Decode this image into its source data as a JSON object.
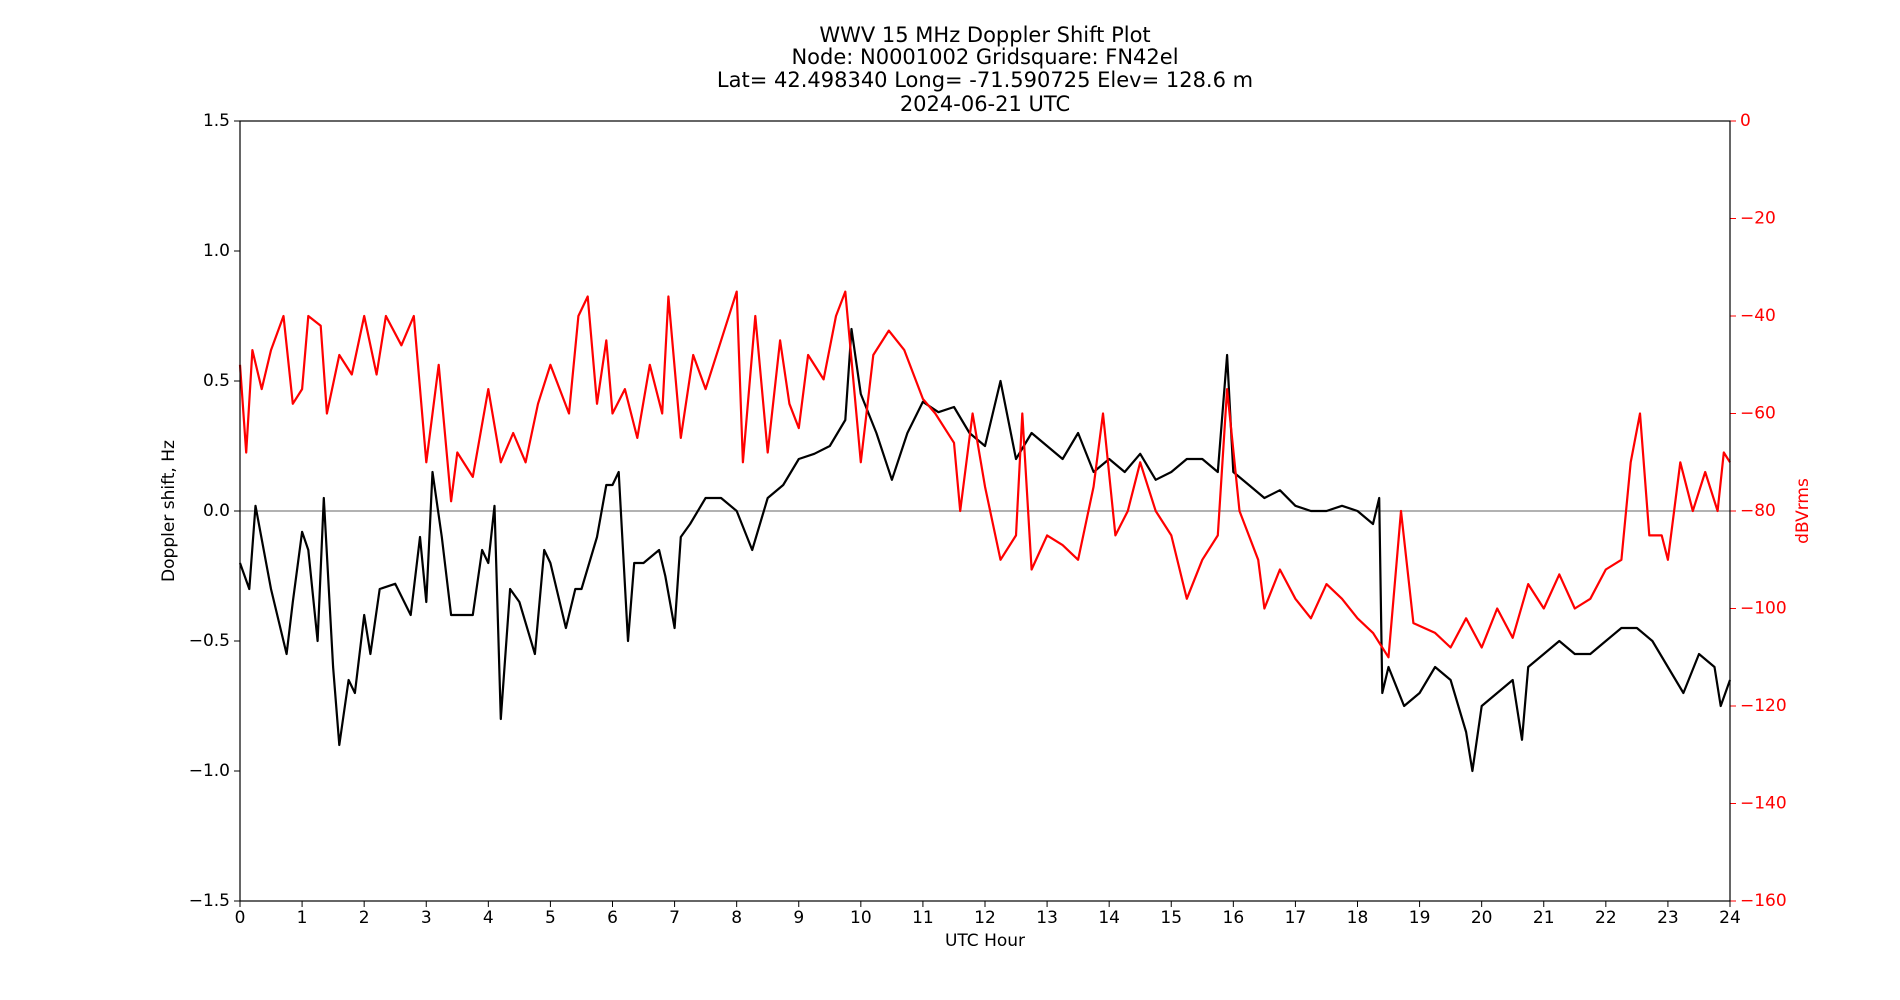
{
  "chart_data": {
    "type": "line",
    "title": [
      "WWV 15 MHz Doppler Shift Plot",
      "Node:  N0001002     Gridsquare:  FN42el",
      "Lat= 42.498340    Long= -71.590725    Elev= 128.6 m",
      "2024-06-21  UTC"
    ],
    "xlabel": "UTC Hour",
    "ylabel": "Doppler shift, Hz",
    "y2label": "dBVrms",
    "y2color": "#ff0000",
    "xlim": [
      0,
      24
    ],
    "xticks": [
      0,
      1,
      2,
      3,
      4,
      5,
      6,
      7,
      8,
      9,
      10,
      11,
      12,
      13,
      14,
      15,
      16,
      17,
      18,
      19,
      20,
      21,
      22,
      23,
      24
    ],
    "ylim": [
      -1.5,
      1.5
    ],
    "yticks": [
      {
        "value": -1.5,
        "label": "−1.5"
      },
      {
        "value": -1.0,
        "label": "−1.0"
      },
      {
        "value": -0.5,
        "label": "−0.5"
      },
      {
        "value": 0,
        "label": "0.0"
      },
      0.5,
      {
        "value": 1.0,
        "label": "1.0"
      },
      1.5
    ],
    "y2lim": [
      -160,
      0
    ],
    "y2ticks": [
      {
        "value": -160,
        "label": "−160"
      },
      {
        "value": -140,
        "label": "−140"
      },
      {
        "value": -120,
        "label": "−120"
      },
      {
        "value": -100,
        "label": "−100"
      },
      {
        "value": -80,
        "label": "−80"
      },
      {
        "value": -60,
        "label": "−60"
      },
      {
        "value": -40,
        "label": "−40"
      },
      {
        "value": -20,
        "label": "−20"
      },
      0
    ],
    "hline": 0,
    "series": [
      {
        "color": "#000000",
        "axis": "y",
        "x": [
          0,
          0.15,
          0.25,
          0.5,
          0.75,
          0.85,
          1.0,
          1.1,
          1.25,
          1.35,
          1.5,
          1.6,
          1.75,
          1.85,
          2.0,
          2.1,
          2.25,
          2.5,
          2.75,
          2.9,
          3.0,
          3.1,
          3.25,
          3.4,
          3.5,
          3.75,
          3.9,
          4.0,
          4.1,
          4.2,
          4.35,
          4.5,
          4.75,
          4.9,
          5.0,
          5.25,
          5.4,
          5.5,
          5.75,
          5.9,
          6.0,
          6.1,
          6.25,
          6.35,
          6.5,
          6.75,
          6.85,
          7.0,
          7.1,
          7.25,
          7.5,
          7.75,
          8.0,
          8.25,
          8.5,
          8.75,
          9.0,
          9.25,
          9.5,
          9.75,
          9.85,
          10.0,
          10.25,
          10.5,
          10.75,
          11.0,
          11.25,
          11.5,
          11.75,
          12.0,
          12.25,
          12.5,
          12.75,
          13.0,
          13.25,
          13.5,
          13.75,
          14.0,
          14.25,
          14.5,
          14.75,
          15.0,
          15.25,
          15.5,
          15.75,
          15.9,
          16.0,
          16.25,
          16.5,
          16.75,
          17.0,
          17.25,
          17.5,
          17.75,
          18.0,
          18.25,
          18.35,
          18.4,
          18.5,
          18.75,
          19.0,
          19.25,
          19.5,
          19.75,
          19.85,
          20.0,
          20.25,
          20.5,
          20.65,
          20.75,
          21.0,
          21.25,
          21.5,
          21.75,
          22.0,
          22.25,
          22.5,
          22.75,
          23.0,
          23.25,
          23.5,
          23.75,
          23.85,
          24.0
        ],
        "values": [
          -0.2,
          -0.3,
          0.02,
          -0.3,
          -0.55,
          -0.35,
          -0.08,
          -0.15,
          -0.5,
          0.05,
          -0.6,
          -0.9,
          -0.65,
          -0.7,
          -0.4,
          -0.55,
          -0.3,
          -0.28,
          -0.4,
          -0.1,
          -0.35,
          0.15,
          -0.1,
          -0.4,
          -0.4,
          -0.4,
          -0.15,
          -0.2,
          0.02,
          -0.8,
          -0.3,
          -0.35,
          -0.55,
          -0.15,
          -0.2,
          -0.45,
          -0.3,
          -0.3,
          -0.1,
          0.1,
          0.1,
          0.15,
          -0.5,
          -0.2,
          -0.2,
          -0.15,
          -0.25,
          -0.45,
          -0.1,
          -0.05,
          0.05,
          0.05,
          0.0,
          -0.15,
          0.05,
          0.1,
          0.2,
          0.22,
          0.25,
          0.35,
          0.7,
          0.45,
          0.3,
          0.12,
          0.3,
          0.42,
          0.38,
          0.4,
          0.3,
          0.25,
          0.5,
          0.2,
          0.3,
          0.25,
          0.2,
          0.3,
          0.15,
          0.2,
          0.15,
          0.22,
          0.12,
          0.15,
          0.2,
          0.2,
          0.15,
          0.6,
          0.15,
          0.1,
          0.05,
          0.08,
          0.02,
          0.0,
          0.0,
          0.02,
          0.0,
          -0.05,
          0.05,
          -0.7,
          -0.6,
          -0.75,
          -0.7,
          -0.6,
          -0.65,
          -0.85,
          -1.0,
          -0.75,
          -0.7,
          -0.65,
          -0.88,
          -0.6,
          -0.55,
          -0.5,
          -0.55,
          -0.55,
          -0.5,
          -0.45,
          -0.45,
          -0.5,
          -0.6,
          -0.7,
          -0.55,
          -0.6,
          -0.75,
          -0.65
        ]
      },
      {
        "color": "#ff0000",
        "axis": "y2",
        "x": [
          0,
          0.1,
          0.2,
          0.35,
          0.5,
          0.7,
          0.85,
          1.0,
          1.1,
          1.3,
          1.4,
          1.6,
          1.8,
          2.0,
          2.2,
          2.35,
          2.6,
          2.8,
          3.0,
          3.2,
          3.4,
          3.5,
          3.75,
          4.0,
          4.2,
          4.4,
          4.6,
          4.8,
          5.0,
          5.3,
          5.45,
          5.6,
          5.75,
          5.9,
          6.0,
          6.2,
          6.4,
          6.6,
          6.8,
          6.9,
          7.1,
          7.3,
          7.5,
          7.75,
          8.0,
          8.1,
          8.3,
          8.5,
          8.7,
          8.85,
          9.0,
          9.15,
          9.4,
          9.6,
          9.75,
          10.0,
          10.2,
          10.45,
          10.7,
          11.0,
          11.2,
          11.5,
          11.6,
          11.8,
          12.0,
          12.25,
          12.5,
          12.6,
          12.75,
          13.0,
          13.25,
          13.5,
          13.75,
          13.9,
          14.1,
          14.3,
          14.5,
          14.75,
          15.0,
          15.25,
          15.5,
          15.75,
          15.9,
          16.1,
          16.4,
          16.5,
          16.75,
          17.0,
          17.25,
          17.5,
          17.75,
          18.0,
          18.25,
          18.5,
          18.7,
          18.9,
          19.25,
          19.5,
          19.75,
          20.0,
          20.25,
          20.5,
          20.75,
          21.0,
          21.25,
          21.5,
          21.75,
          22.0,
          22.25,
          22.4,
          22.55,
          22.7,
          22.9,
          23.0,
          23.2,
          23.4,
          23.6,
          23.8,
          23.9,
          24.0
        ],
        "values": [
          -50,
          -68,
          -47,
          -55,
          -47,
          -40,
          -58,
          -55,
          -40,
          -42,
          -60,
          -48,
          -52,
          -40,
          -52,
          -40,
          -46,
          -40,
          -70,
          -50,
          -78,
          -68,
          -73,
          -55,
          -70,
          -64,
          -70,
          -58,
          -50,
          -60,
          -40,
          -36,
          -58,
          -45,
          -60,
          -55,
          -65,
          -50,
          -60,
          -36,
          -65,
          -48,
          -55,
          -45,
          -35,
          -70,
          -40,
          -68,
          -45,
          -58,
          -63,
          -48,
          -53,
          -40,
          -35,
          -70,
          -48,
          -43,
          -47,
          -57,
          -60,
          -66,
          -80,
          -60,
          -75,
          -90,
          -85,
          -60,
          -92,
          -85,
          -87,
          -90,
          -75,
          -60,
          -85,
          -80,
          -70,
          -80,
          -85,
          -98,
          -90,
          -85,
          -55,
          -80,
          -90,
          -100,
          -92,
          -98,
          -102,
          -95,
          -98,
          -102,
          -105,
          -110,
          -80,
          -103,
          -105,
          -108,
          -102,
          -108,
          -100,
          -106,
          -95,
          -100,
          -93,
          -100,
          -98,
          -92,
          -90,
          -70,
          -60,
          -85,
          -85,
          -90,
          -70,
          -80,
          -72,
          -80,
          -68,
          -70
        ]
      }
    ]
  }
}
